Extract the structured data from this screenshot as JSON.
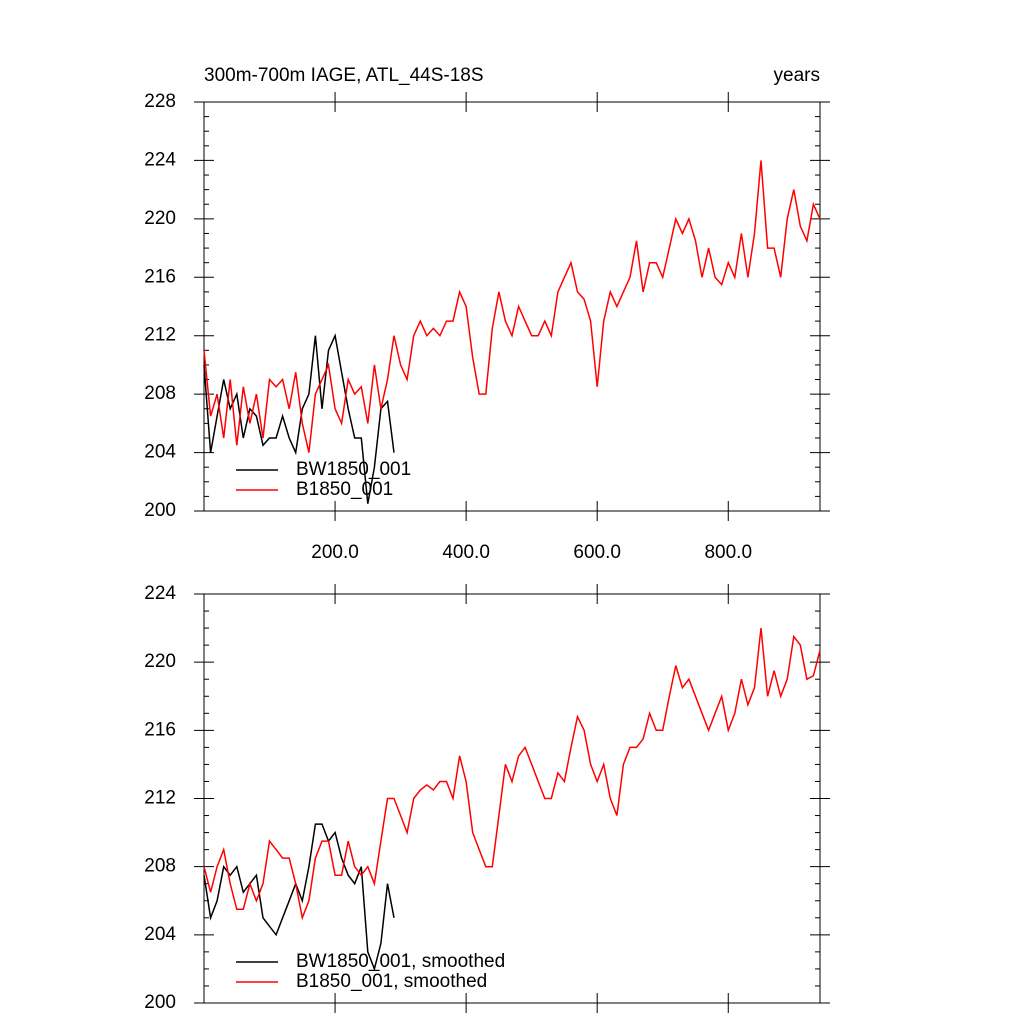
{
  "chart_data": [
    {
      "type": "line",
      "title": "300m-700m IAGE, ATL_44S-18S",
      "subtitle": "years",
      "xlim": [
        0,
        940
      ],
      "ylim": [
        200,
        228
      ],
      "xticks": [
        {
          "value": 200,
          "label": "200.0"
        },
        {
          "value": 400,
          "label": "400.0"
        },
        {
          "value": 600,
          "label": "600.0"
        },
        {
          "value": 800,
          "label": "800.0"
        }
      ],
      "yticks": [
        200,
        204,
        208,
        212,
        216,
        220,
        224,
        228
      ],
      "series": [
        {
          "name": "BW1850_001",
          "color": "#000000",
          "x": [
            0,
            10,
            20,
            30,
            40,
            50,
            60,
            70,
            80,
            90,
            100,
            110,
            120,
            130,
            140,
            150,
            160,
            170,
            180,
            190,
            200,
            210,
            220,
            230,
            240,
            250,
            260,
            270,
            280,
            290
          ],
          "values": [
            210,
            204,
            206.5,
            209,
            207,
            208,
            205,
            207,
            206.5,
            204.5,
            205,
            205,
            206.5,
            205,
            204,
            207,
            208,
            212,
            207,
            211,
            212,
            209.5,
            207,
            205,
            205,
            200.5,
            203,
            207,
            207.5,
            204
          ]
        },
        {
          "name": "B1850_001",
          "color": "#ff0000",
          "x": [
            0,
            10,
            20,
            30,
            40,
            50,
            60,
            70,
            80,
            90,
            100,
            110,
            120,
            130,
            140,
            150,
            160,
            170,
            180,
            190,
            200,
            210,
            220,
            230,
            240,
            250,
            260,
            270,
            280,
            290,
            300,
            310,
            320,
            330,
            340,
            350,
            360,
            370,
            380,
            390,
            400,
            410,
            420,
            430,
            440,
            450,
            460,
            470,
            480,
            490,
            500,
            510,
            520,
            530,
            540,
            550,
            560,
            570,
            580,
            590,
            600,
            610,
            620,
            630,
            640,
            650,
            660,
            670,
            680,
            690,
            700,
            710,
            720,
            730,
            740,
            750,
            760,
            770,
            780,
            790,
            800,
            810,
            820,
            830,
            840,
            850,
            860,
            870,
            880,
            890,
            900,
            910,
            920,
            930,
            940
          ],
          "values": [
            211,
            206.5,
            208,
            205,
            209,
            204.5,
            208.5,
            206,
            208,
            205,
            209,
            208.5,
            209,
            207,
            209.5,
            206,
            204,
            208,
            209,
            210,
            207,
            206,
            209,
            208,
            208.5,
            206,
            210,
            207,
            209,
            212,
            210,
            209,
            212,
            213,
            212,
            212.5,
            212,
            213,
            213,
            215,
            214,
            210.5,
            208,
            208,
            212.5,
            215,
            213,
            212,
            214,
            213,
            212,
            212,
            213,
            212,
            215,
            216,
            217,
            215,
            214.5,
            213,
            208.5,
            213,
            215,
            214,
            215,
            216,
            218.5,
            215,
            217,
            217,
            216,
            218,
            220,
            219,
            220,
            218.5,
            216,
            218,
            216,
            215.5,
            217,
            216,
            219,
            216,
            219,
            224,
            218,
            218,
            216,
            220,
            222,
            219.5,
            218.5,
            221,
            220
          ]
        }
      ]
    },
    {
      "type": "line",
      "xlim": [
        0,
        940
      ],
      "ylim": [
        200,
        224
      ],
      "xticks": [
        200,
        400,
        600,
        800
      ],
      "yticks": [
        200,
        204,
        208,
        212,
        216,
        220,
        224
      ],
      "series": [
        {
          "name": "BW1850_001, smoothed",
          "color": "#000000",
          "x": [
            0,
            10,
            20,
            30,
            40,
            50,
            60,
            70,
            80,
            90,
            100,
            110,
            120,
            130,
            140,
            150,
            160,
            170,
            180,
            190,
            200,
            210,
            220,
            230,
            240,
            250,
            260,
            270,
            280,
            290
          ],
          "values": [
            207.5,
            205,
            206,
            208,
            207.5,
            208,
            206.5,
            207,
            207.5,
            205,
            204.5,
            204,
            205,
            206,
            207,
            206,
            208,
            210.5,
            210.5,
            209.5,
            210,
            208.5,
            207.5,
            207,
            208,
            203,
            202,
            203.5,
            207,
            205
          ]
        },
        {
          "name": "B1850_001, smoothed",
          "color": "#ff0000",
          "x": [
            0,
            10,
            20,
            30,
            40,
            50,
            60,
            70,
            80,
            90,
            100,
            110,
            120,
            130,
            140,
            150,
            160,
            170,
            180,
            190,
            200,
            210,
            220,
            230,
            240,
            250,
            260,
            270,
            280,
            290,
            300,
            310,
            320,
            330,
            340,
            350,
            360,
            370,
            380,
            390,
            400,
            410,
            420,
            430,
            440,
            450,
            460,
            470,
            480,
            490,
            500,
            510,
            520,
            530,
            540,
            550,
            560,
            570,
            580,
            590,
            600,
            610,
            620,
            630,
            640,
            650,
            660,
            670,
            680,
            690,
            700,
            710,
            720,
            730,
            740,
            750,
            760,
            770,
            780,
            790,
            800,
            810,
            820,
            830,
            840,
            850,
            860,
            870,
            880,
            890,
            900,
            910,
            920,
            930,
            940
          ],
          "values": [
            208,
            206.5,
            208,
            209,
            207,
            205.5,
            205.5,
            207,
            206,
            207,
            209.5,
            209,
            208.5,
            208.5,
            207,
            205,
            206,
            208.5,
            209.5,
            209.5,
            207.5,
            207.5,
            209.5,
            208,
            207.5,
            208,
            207,
            209.5,
            212,
            212,
            211,
            210,
            212,
            212.5,
            212.8,
            212.5,
            213,
            213,
            212,
            214.5,
            213,
            210,
            209,
            208,
            208,
            211,
            214,
            213,
            214.5,
            215,
            214,
            213,
            212,
            212,
            213.5,
            213,
            215,
            216.8,
            216,
            214,
            213,
            214,
            212,
            211,
            214,
            215,
            215,
            215.5,
            217,
            216,
            216,
            218,
            219.8,
            218.5,
            219,
            218,
            217,
            216,
            217,
            218,
            216,
            217,
            219,
            217.5,
            218.5,
            222,
            218,
            219.5,
            218,
            219,
            221.5,
            221,
            219,
            219.2,
            220.7
          ]
        }
      ]
    }
  ]
}
